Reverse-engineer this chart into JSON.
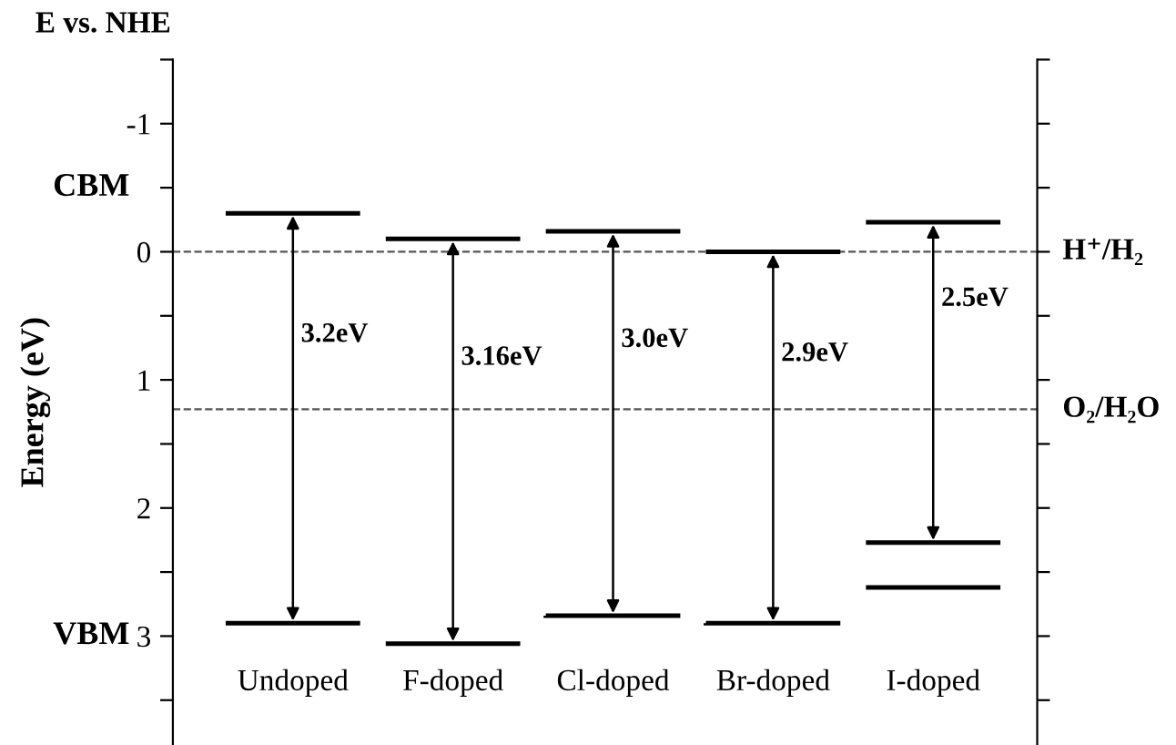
{
  "chart_data": {
    "type": "bar",
    "title": "E vs. NHE",
    "ylabel": "Energy (eV)",
    "categories": [
      "Undoped",
      "F-doped",
      "Cl-doped",
      "Br-doped",
      "I-doped"
    ],
    "series": [
      {
        "color": "#000000",
        "base": [
          -0.3,
          -0.1,
          -0.16,
          0.0,
          -0.23
        ],
        "values": [
          3.2,
          3.16,
          3.0,
          2.9,
          2.5
        ],
        "value_labels": [
          "3.2eV",
          "3.16eV",
          "3.0eV",
          "2.9eV",
          "2.5eV"
        ]
      },
      {
        "color": "#000000",
        "base": [
          null,
          null,
          null,
          null,
          2.62
        ],
        "values": [
          null,
          null,
          null,
          null,
          0
        ]
      }
    ],
    "ylim": [
      3.85,
      -1.5
    ],
    "yticks": [
      {
        "value": -1.5,
        "label": null
      },
      -1,
      {
        "value": -0.5,
        "label": null
      },
      0,
      {
        "value": 0.5,
        "label": null
      },
      1,
      {
        "value": 1.5,
        "label": null
      },
      2,
      {
        "value": 2.5,
        "label": null
      },
      3,
      {
        "value": 3.5,
        "label": null
      }
    ],
    "ref_lines": [
      {
        "axis": "y",
        "value": 0,
        "label": "H⁺/H₂",
        "color": "#555555",
        "line_style": "dashed"
      },
      {
        "axis": "y",
        "value": 1.23,
        "label": "O₂/H₂O",
        "color": "#555555",
        "line_style": "dashed"
      }
    ],
    "annotations": [
      "CBM",
      "VBM"
    ],
    "grid": false
  }
}
